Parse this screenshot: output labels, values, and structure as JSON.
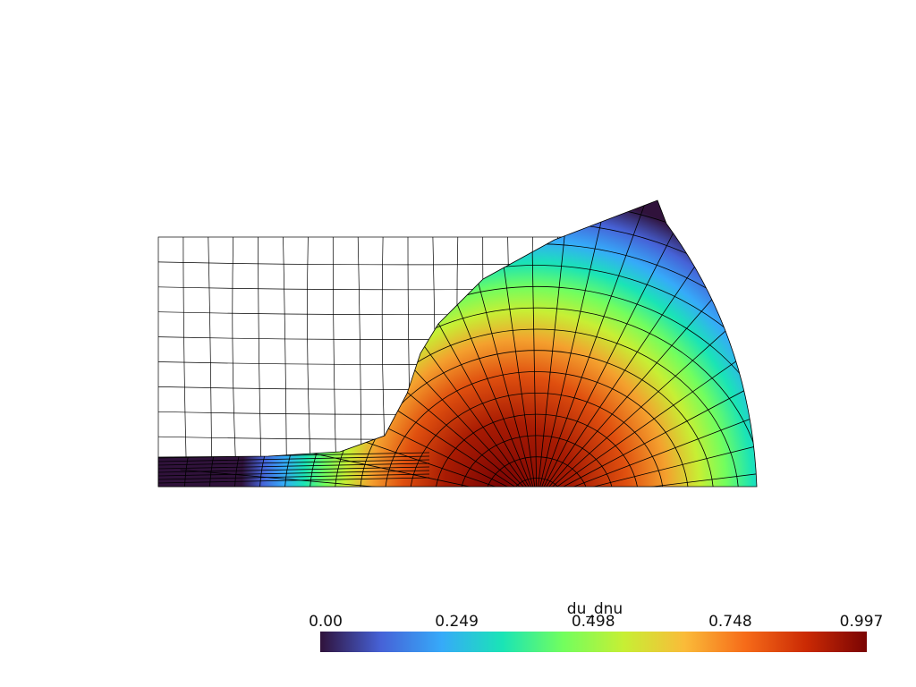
{
  "colorbar": {
    "title": "du_dnu",
    "range": [
      0,
      0.997
    ],
    "ticks": [
      {
        "value": 0,
        "label": "0.00"
      },
      {
        "value": 0.249,
        "label": "0.249"
      },
      {
        "value": 0.498,
        "label": "0.498"
      },
      {
        "value": 0.748,
        "label": "0.748"
      },
      {
        "value": 0.997,
        "label": "0.997"
      }
    ],
    "colormap": [
      "#30123b",
      "#4662d7",
      "#36aaf9",
      "#1ae4b6",
      "#72fe5e",
      "#c7ef34",
      "#fabb39",
      "#f66b19",
      "#cb2a04",
      "#7a0403"
    ]
  }
}
